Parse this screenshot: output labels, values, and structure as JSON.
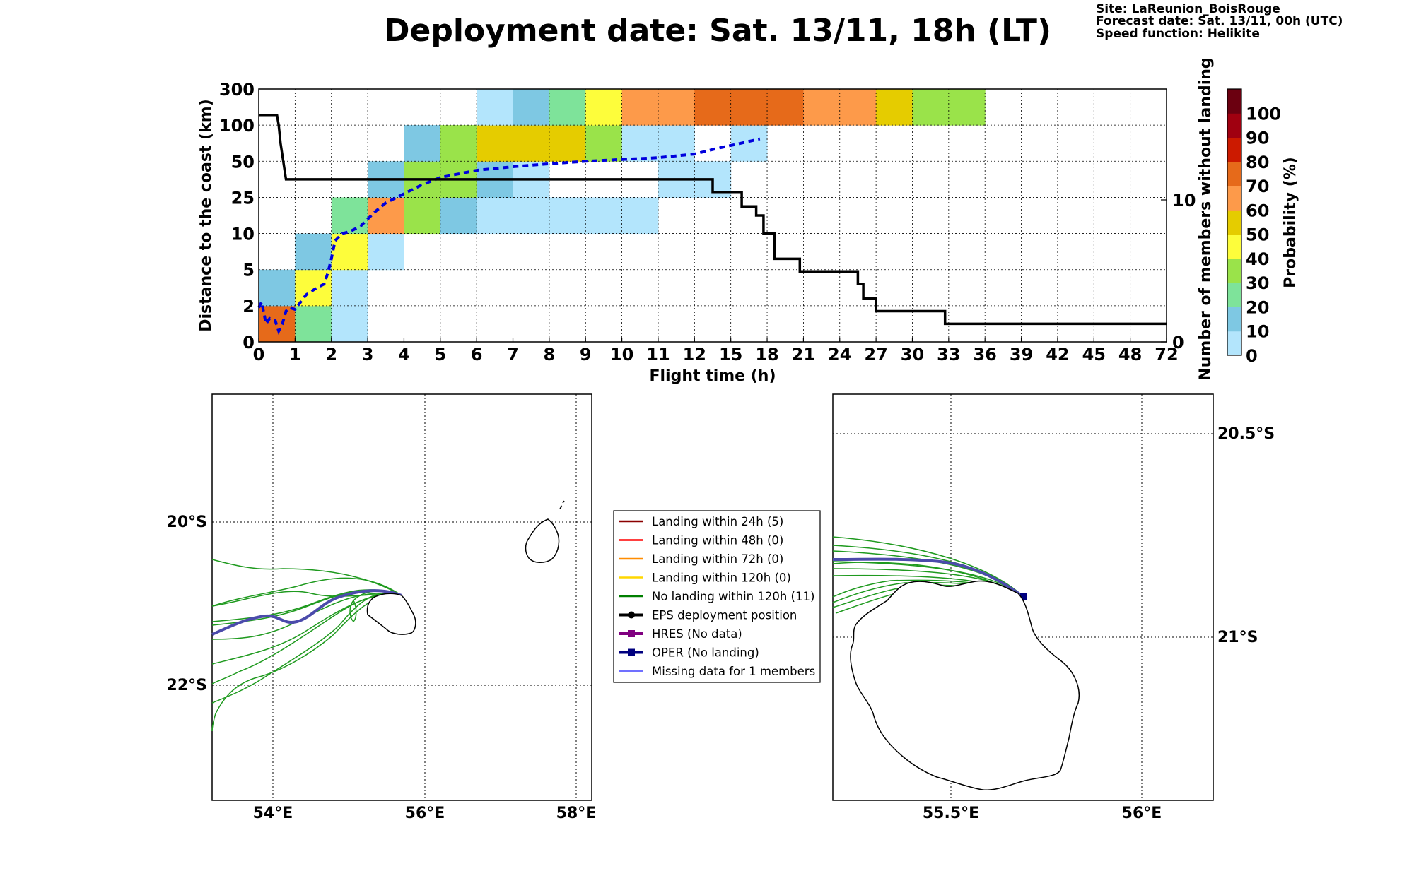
{
  "header": {
    "title": "Deployment date: Sat. 13/11, 18h (LT)",
    "site": "Site: LaReunion_BoisRouge",
    "forecast": "Forecast date: Sat. 13/11, 00h (UTC)",
    "speed": "Speed function: Helikite"
  },
  "chart_data": [
    {
      "type": "heatmap",
      "xlabel": "Flight time (h)",
      "ylabel": "Distance to the coast (km)",
      "y2label": "Number of members without landing",
      "x_ticks": [
        "0",
        "1",
        "2",
        "3",
        "4",
        "5",
        "6",
        "7",
        "8",
        "9",
        "10",
        "11",
        "12",
        "15",
        "18",
        "21",
        "24",
        "27",
        "30",
        "33",
        "36",
        "39",
        "42",
        "45",
        "48",
        "72"
      ],
      "y_ticks": [
        "0",
        "2",
        "5",
        "10",
        "25",
        "50",
        "100",
        "300"
      ],
      "y2_ticks": [
        "0",
        "10"
      ],
      "grid": true,
      "colorbar": {
        "label": "Probability (%)",
        "ticks": [
          "0",
          "10",
          "20",
          "30",
          "40",
          "50",
          "60",
          "70",
          "80",
          "90",
          "100"
        ],
        "colors": [
          "#b3e5fc",
          "#7ec8e3",
          "#7ee39a",
          "#9ae34a",
          "#fdfd3b",
          "#e5cc00",
          "#fd9a4a",
          "#e66a1a",
          "#cc1a00",
          "#a00010",
          "#6b0010"
        ]
      },
      "cells": [
        {
          "x": 0,
          "y": 0,
          "p": 70
        },
        {
          "x": 1,
          "y": 0,
          "p": 20
        },
        {
          "x": 2,
          "y": 0,
          "p": 0
        },
        {
          "x": 0,
          "y": 1,
          "p": 10
        },
        {
          "x": 1,
          "y": 1,
          "p": 40
        },
        {
          "x": 2,
          "y": 1,
          "p": 0
        },
        {
          "x": 1,
          "y": 2,
          "p": 10
        },
        {
          "x": 2,
          "y": 2,
          "p": 40
        },
        {
          "x": 3,
          "y": 2,
          "p": 0
        },
        {
          "x": 2,
          "y": 3,
          "p": 20
        },
        {
          "x": 3,
          "y": 3,
          "p": 60
        },
        {
          "x": 4,
          "y": 3,
          "p": 30
        },
        {
          "x": 5,
          "y": 3,
          "p": 10
        },
        {
          "x": 6,
          "y": 3,
          "p": 0
        },
        {
          "x": 7,
          "y": 3,
          "p": 0
        },
        {
          "x": 8,
          "y": 3,
          "p": 0
        },
        {
          "x": 9,
          "y": 3,
          "p": 0
        },
        {
          "x": 10,
          "y": 3,
          "p": 0
        },
        {
          "x": 3,
          "y": 4,
          "p": 10
        },
        {
          "x": 4,
          "y": 4,
          "p": 30
        },
        {
          "x": 5,
          "y": 4,
          "p": 30
        },
        {
          "x": 6,
          "y": 4,
          "p": 10
        },
        {
          "x": 7,
          "y": 4,
          "p": 0
        },
        {
          "x": 11,
          "y": 4,
          "p": 0
        },
        {
          "x": 12,
          "y": 4,
          "p": 0
        },
        {
          "x": 4,
          "y": 5,
          "p": 10
        },
        {
          "x": 5,
          "y": 5,
          "p": 30
        },
        {
          "x": 6,
          "y": 5,
          "p": 50
        },
        {
          "x": 7,
          "y": 5,
          "p": 50
        },
        {
          "x": 8,
          "y": 5,
          "p": 50
        },
        {
          "x": 9,
          "y": 5,
          "p": 30
        },
        {
          "x": 10,
          "y": 5,
          "p": 0
        },
        {
          "x": 11,
          "y": 5,
          "p": 0
        },
        {
          "x": 13,
          "y": 5,
          "p": 0
        },
        {
          "x": 6,
          "y": 6,
          "p": 0
        },
        {
          "x": 7,
          "y": 6,
          "p": 10
        },
        {
          "x": 8,
          "y": 6,
          "p": 20
        },
        {
          "x": 9,
          "y": 6,
          "p": 40
        },
        {
          "x": 10,
          "y": 6,
          "p": 60
        },
        {
          "x": 11,
          "y": 6,
          "p": 60
        },
        {
          "x": 12,
          "y": 6,
          "p": 70
        },
        {
          "x": 13,
          "y": 6,
          "p": 70
        },
        {
          "x": 14,
          "y": 6,
          "p": 70
        },
        {
          "x": 15,
          "y": 6,
          "p": 60
        },
        {
          "x": 16,
          "y": 6,
          "p": 60
        },
        {
          "x": 17,
          "y": 6,
          "p": 50
        },
        {
          "x": 18,
          "y": 6,
          "p": 30
        },
        {
          "x": 19,
          "y": 6,
          "p": 30
        }
      ],
      "series": [
        {
          "style": "dashed-blue",
          "points": [
            [
              0,
              0.95
            ],
            [
              0.08,
              1.1
            ],
            [
              0.2,
              0.5
            ],
            [
              0.3,
              0.65
            ],
            [
              0.45,
              0.6
            ],
            [
              0.55,
              0.3
            ],
            [
              0.65,
              0.5
            ],
            [
              0.75,
              0.85
            ],
            [
              0.85,
              0.95
            ],
            [
              1.0,
              0.9
            ],
            [
              1.3,
              1.3
            ],
            [
              1.6,
              1.5
            ],
            [
              1.8,
              1.6
            ],
            [
              1.9,
              1.9
            ],
            [
              2.0,
              2.3
            ],
            [
              2.1,
              2.8
            ],
            [
              2.3,
              3.0
            ],
            [
              2.5,
              3.05
            ],
            [
              2.8,
              3.2
            ],
            [
              3.0,
              3.4
            ],
            [
              3.2,
              3.6
            ],
            [
              3.5,
              3.85
            ],
            [
              4.0,
              4.1
            ],
            [
              4.5,
              4.35
            ],
            [
              5.0,
              4.55
            ],
            [
              5.5,
              4.65
            ],
            [
              6.0,
              4.75
            ],
            [
              7.0,
              4.85
            ],
            [
              8.0,
              4.93
            ],
            [
              9.0,
              5.0
            ],
            [
              10.0,
              5.05
            ],
            [
              11.0,
              5.1
            ],
            [
              12.0,
              5.2
            ],
            [
              12.6,
              5.35
            ],
            [
              13.2,
              5.48
            ],
            [
              13.8,
              5.62
            ]
          ]
        },
        {
          "style": "solid-black",
          "points": [
            [
              0,
              6.28
            ],
            [
              0.5,
              6.28
            ],
            [
              0.55,
              6.0
            ],
            [
              0.6,
              5.5
            ],
            [
              0.75,
              4.5
            ],
            [
              12.5,
              4.5
            ],
            [
              12.5,
              4.15
            ],
            [
              13.3,
              4.15
            ],
            [
              13.3,
              3.75
            ],
            [
              13.7,
              3.75
            ],
            [
              13.7,
              3.5
            ],
            [
              13.9,
              3.5
            ],
            [
              13.9,
              3.0
            ],
            [
              14.2,
              3.0
            ],
            [
              14.2,
              2.3
            ],
            [
              14.9,
              2.3
            ],
            [
              14.9,
              1.95
            ],
            [
              16.5,
              1.95
            ],
            [
              16.5,
              1.6
            ],
            [
              16.65,
              1.6
            ],
            [
              16.65,
              1.2
            ],
            [
              17.0,
              1.2
            ],
            [
              17.0,
              0.85
            ],
            [
              18.9,
              0.85
            ],
            [
              18.9,
              0.5
            ],
            [
              25,
              0.5
            ]
          ]
        }
      ]
    }
  ],
  "left_map": {
    "x_ticks": [
      "54°E",
      "56°E",
      "58°E"
    ],
    "y_ticks": [
      "20°S",
      "22°S"
    ]
  },
  "right_map": {
    "x_ticks": [
      "55.5°E",
      "56°E"
    ],
    "y_ticks": [
      "20.5°S",
      "21°S"
    ]
  },
  "legend": {
    "items": [
      {
        "label": "Landing within 24h (5)",
        "color": "#8b0000",
        "style": "line"
      },
      {
        "label": "Landing within 48h (0)",
        "color": "#ff0000",
        "style": "line"
      },
      {
        "label": "Landing within 72h (0)",
        "color": "#ff8c00",
        "style": "line"
      },
      {
        "label": "Landing within 120h (0)",
        "color": "#ffd700",
        "style": "line"
      },
      {
        "label": "No landing within 120h (11)",
        "color": "#007f00",
        "style": "line"
      },
      {
        "label": "EPS deployment position",
        "color": "#000000",
        "style": "circle"
      },
      {
        "label": "HRES (No data)",
        "color": "#800080",
        "style": "square"
      },
      {
        "label": "OPER (No landing)",
        "color": "#00007f",
        "style": "square"
      },
      {
        "label": "Missing data for 1 members",
        "color": "#4040ff",
        "style": "thin"
      }
    ]
  }
}
